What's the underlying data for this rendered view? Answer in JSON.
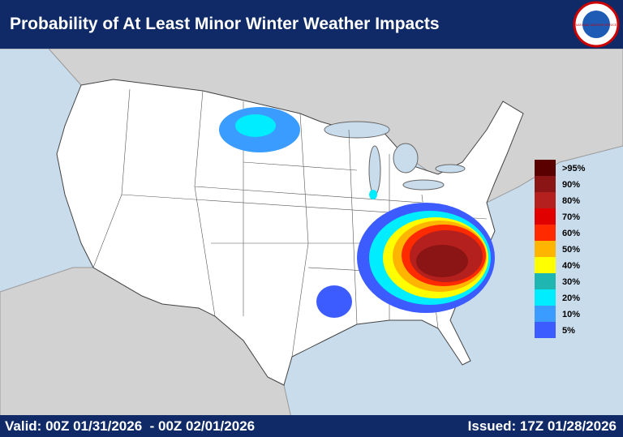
{
  "header": {
    "title": "Probability of At Least Minor Winter Weather Impacts",
    "logo": "NATIONAL WEATHER SERVICE"
  },
  "legend": {
    "items": [
      {
        "label": ">95%",
        "color": "#5a0000"
      },
      {
        "label": "90%",
        "color": "#8b1414"
      },
      {
        "label": "80%",
        "color": "#b3201e"
      },
      {
        "label": "70%",
        "color": "#e00000"
      },
      {
        "label": "60%",
        "color": "#ff2a00"
      },
      {
        "label": "50%",
        "color": "#ffb400"
      },
      {
        "label": "40%",
        "color": "#ffff00"
      },
      {
        "label": "30%",
        "color": "#1fb5b0"
      },
      {
        "label": "20%",
        "color": "#00ecff"
      },
      {
        "label": "10%",
        "color": "#3a9cff"
      },
      {
        "label": "5%",
        "color": "#3d5cff"
      }
    ]
  },
  "footer": {
    "valid": "Valid: 00Z 01/31/2026  - 00Z 02/01/2026",
    "issued": "Issued: 17Z 01/28/2026"
  }
}
